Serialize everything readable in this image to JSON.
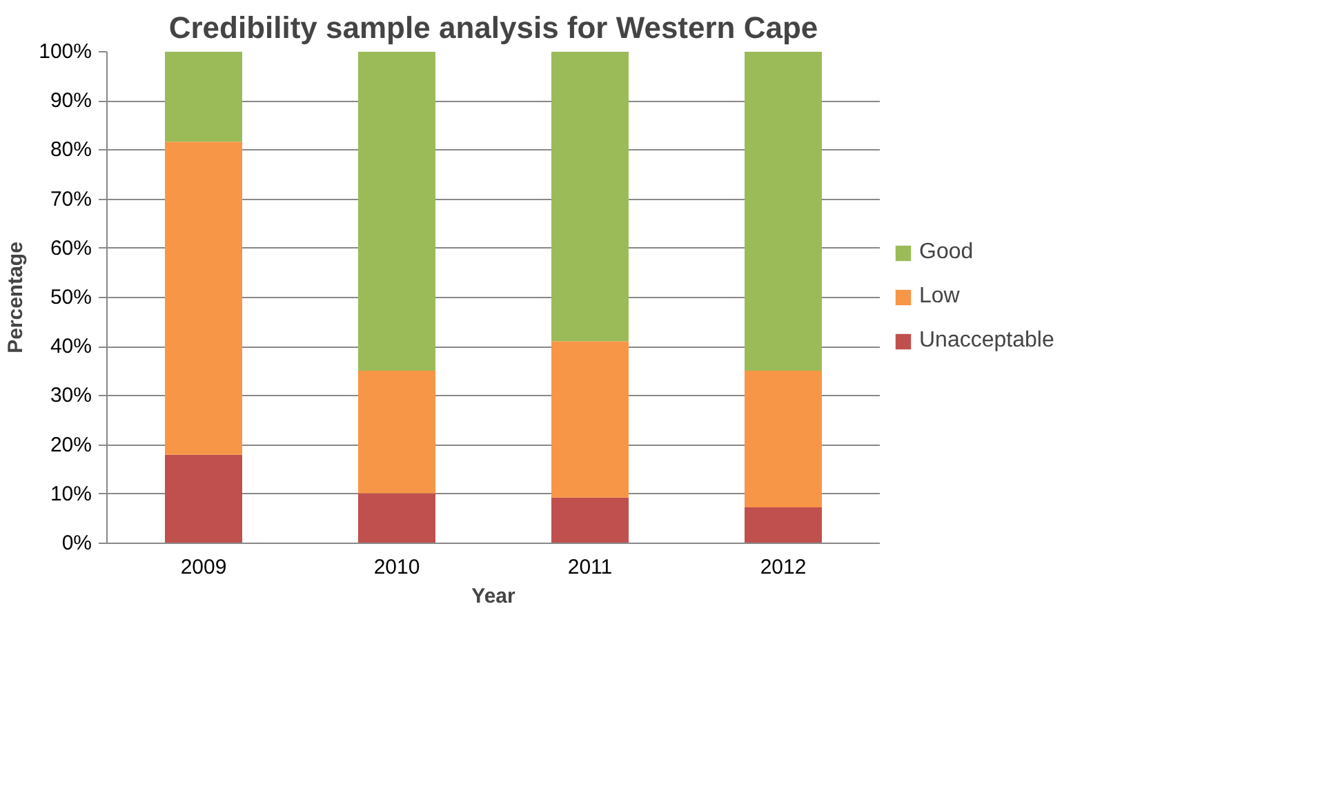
{
  "chart_data": {
    "type": "bar",
    "title": "Credibility sample analysis for Western Cape",
    "xlabel": "Year",
    "ylabel": "Percentage",
    "categories": [
      "2009",
      "2010",
      "2011",
      "2012"
    ],
    "stacked": true,
    "series": [
      {
        "name": "Unacceptable",
        "color": "#c0504d",
        "values": [
          18,
          10.2,
          9.3,
          7.3
        ]
      },
      {
        "name": "Low",
        "color": "#f79646",
        "values": [
          63.7,
          24.9,
          31.8,
          27.8
        ]
      },
      {
        "name": "Good",
        "color": "#9bbb59",
        "values": [
          18.3,
          64.9,
          58.9,
          64.9
        ]
      }
    ],
    "ylim": [
      0,
      100
    ],
    "yticks": [
      {
        "value": 0,
        "label": "0%"
      },
      {
        "value": 10,
        "label": "10%"
      },
      {
        "value": 20,
        "label": "20%"
      },
      {
        "value": 30,
        "label": "30%"
      },
      {
        "value": 40,
        "label": "40%"
      },
      {
        "value": 50,
        "label": "50%"
      },
      {
        "value": 60,
        "label": "60%"
      },
      {
        "value": 70,
        "label": "70%"
      },
      {
        "value": 80,
        "label": "80%"
      },
      {
        "value": 90,
        "label": "90%"
      },
      {
        "value": 100,
        "label": "100%"
      }
    ],
    "grid": "y",
    "legend": "right"
  }
}
